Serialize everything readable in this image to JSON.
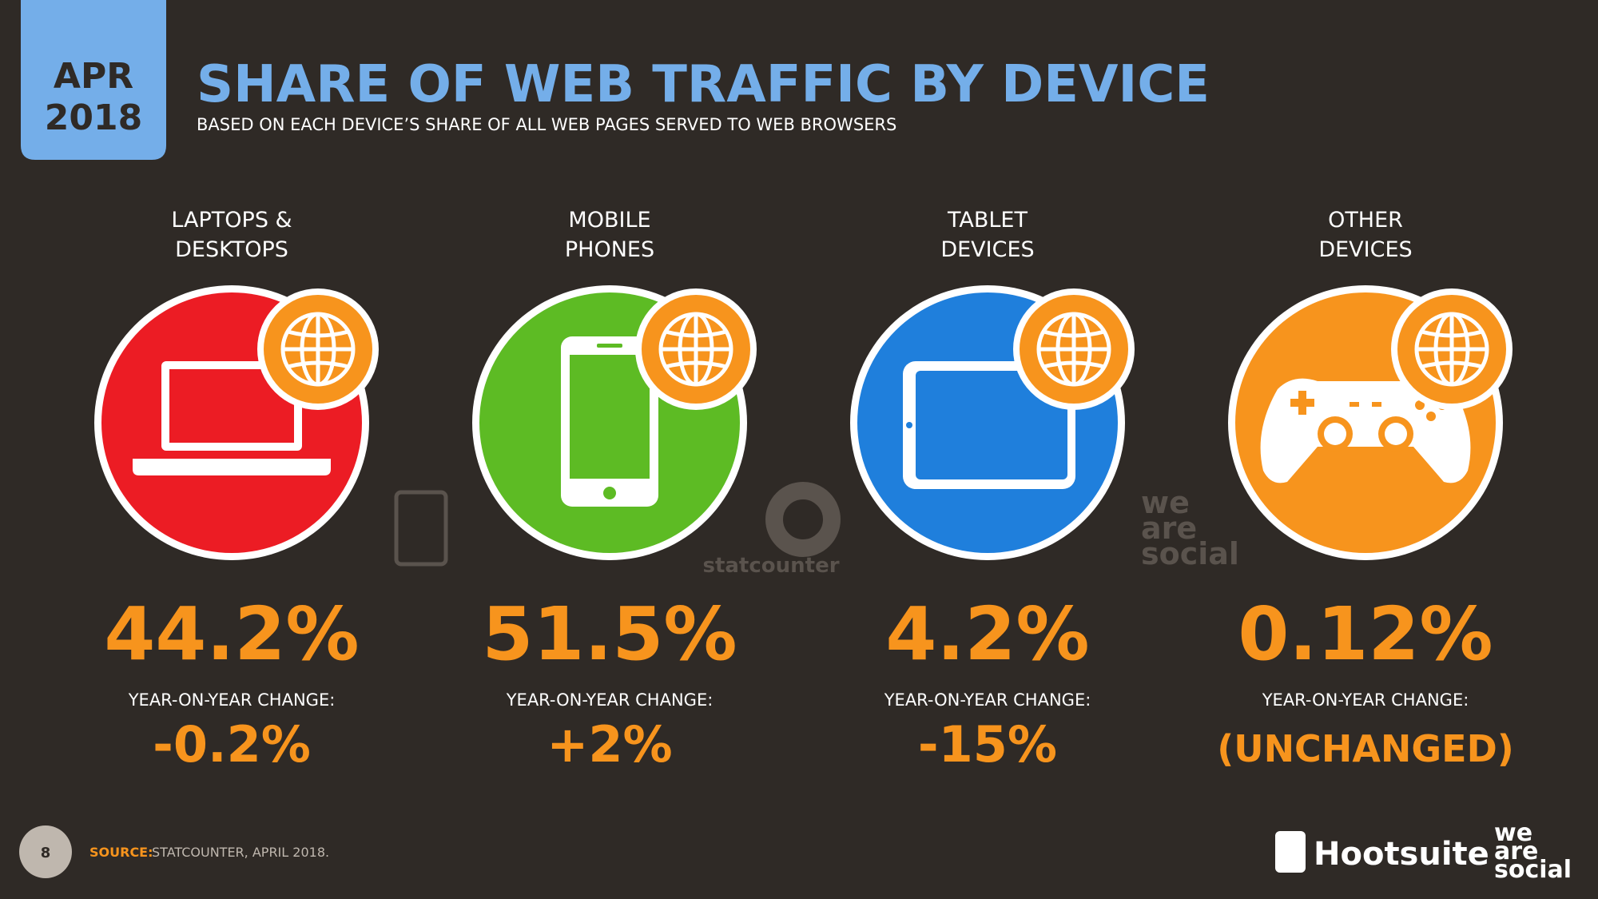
{
  "header": {
    "month": "APR",
    "year": "2018",
    "title": "SHARE OF WEB TRAFFIC BY DEVICE",
    "subtitle": "BASED ON EACH DEVICE’S SHARE OF ALL WEB PAGES SERVED TO WEB BROWSERS"
  },
  "devices": [
    {
      "label": [
        "LAPTOPS &",
        "DESKTOPS"
      ],
      "share": "44.2%",
      "change_label": "YEAR-ON-YEAR CHANGE:",
      "change": "-0.2%"
    },
    {
      "label": [
        "MOBILE",
        "PHONES"
      ],
      "share": "51.5%",
      "change_label": "YEAR-ON-YEAR CHANGE:",
      "change": "+2%"
    },
    {
      "label": [
        "TABLET",
        "DEVICES"
      ],
      "share": "4.2%",
      "change_label": "YEAR-ON-YEAR CHANGE:",
      "change": "-15%"
    },
    {
      "label": [
        "OTHER",
        "DEVICES"
      ],
      "share": "0.12%",
      "change_label": "YEAR-ON-YEAR CHANGE:",
      "change": "(UNCHANGED)"
    }
  ],
  "watermarks": {
    "statcounter": "statcounter",
    "wearesocial": [
      "we",
      "are",
      "social"
    ]
  },
  "footer": {
    "page": "8",
    "source_label": "SOURCE:",
    "source": "STATCOUNTER, APRIL 2018.",
    "hootsuite": "Hootsuite",
    "tm": "™",
    "wearesocial": [
      "we",
      "are",
      "social"
    ]
  }
}
